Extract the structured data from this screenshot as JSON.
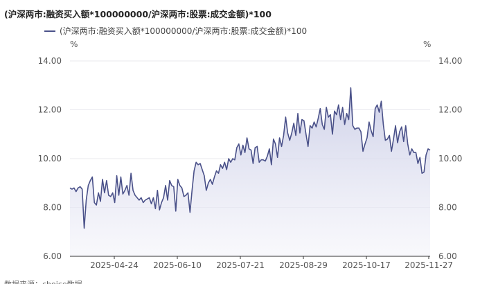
{
  "header": {
    "title": "(沪深两市:融资买入额*100000000/沪深两市:股票:成交金额)*100",
    "footer_note": "数据来源：choice数据"
  },
  "colors": {
    "series_line": "#4a5189",
    "area_top": "#c9cce6",
    "area_bottom": "#f4f4fa",
    "grid": "#e9e9ee",
    "axis_text": "#555555"
  },
  "chart_data": {
    "type": "area",
    "title": "(沪深两市:融资买入额*100000000/沪深两市:股票:成交金额)*100",
    "left_unit": "%",
    "right_unit": "%",
    "ylim": [
      6,
      14
    ],
    "y_ticks": [
      "6.00",
      "8.00",
      "10.00",
      "12.00",
      "14.00"
    ],
    "x_tick_labels": [
      "2025-04-24",
      "2025-06-10",
      "2025-07-21",
      "2025-08-29",
      "2025-10-17",
      "2025-11-27"
    ],
    "grid": true,
    "legend_position": "top-left",
    "series": [
      {
        "name": "(沪深两市:融资买入额*100000000/沪深两市:股票:成交金额)*100",
        "values": [
          8.8,
          8.75,
          8.8,
          8.65,
          8.8,
          8.85,
          8.75,
          7.15,
          8.3,
          8.9,
          9.1,
          9.25,
          8.2,
          8.1,
          8.6,
          8.25,
          9.15,
          8.6,
          9.1,
          8.5,
          8.45,
          8.6,
          8.2,
          9.3,
          8.5,
          9.25,
          8.55,
          8.7,
          8.9,
          8.5,
          9.4,
          8.7,
          8.5,
          8.4,
          8.3,
          8.4,
          8.2,
          8.3,
          8.35,
          8.4,
          8.15,
          8.4,
          7.95,
          8.7,
          7.9,
          8.2,
          8.4,
          8.9,
          8.3,
          9.1,
          8.9,
          8.85,
          7.85,
          9.15,
          8.9,
          8.8,
          8.45,
          8.5,
          8.6,
          7.8,
          8.7,
          9.5,
          9.85,
          9.75,
          9.8,
          9.55,
          9.3,
          8.7,
          9.0,
          9.15,
          8.95,
          9.25,
          9.5,
          9.4,
          9.75,
          9.6,
          9.85,
          9.55,
          10.0,
          9.85,
          10.0,
          9.95,
          10.45,
          10.6,
          10.15,
          10.55,
          10.25,
          10.85,
          10.4,
          10.35,
          9.8,
          10.45,
          10.5,
          9.85,
          9.95,
          9.95,
          9.9,
          10.1,
          10.4,
          9.75,
          10.8,
          10.6,
          10.05,
          10.85,
          10.5,
          10.95,
          11.7,
          11.05,
          10.75,
          11.05,
          11.45,
          10.95,
          11.85,
          11.05,
          11.6,
          11.55,
          11.0,
          10.5,
          11.35,
          11.25,
          11.5,
          11.3,
          11.65,
          12.05,
          11.4,
          11.2,
          12.1,
          11.7,
          11.8,
          11.0,
          11.95,
          11.8,
          12.2,
          11.6,
          12.1,
          11.4,
          11.85,
          11.6,
          12.9,
          11.35,
          11.2,
          11.25,
          11.25,
          11.1,
          10.3,
          10.6,
          10.85,
          11.5,
          11.15,
          10.9,
          12.05,
          12.2,
          11.9,
          12.35,
          11.4,
          10.75,
          10.8,
          10.95,
          10.3,
          10.8,
          11.35,
          10.65,
          11.1,
          11.3,
          10.7,
          11.35,
          10.6,
          10.15,
          10.4,
          10.25,
          10.25,
          9.8,
          10.05,
          9.4,
          9.45,
          10.15,
          10.4,
          10.35
        ]
      }
    ]
  }
}
